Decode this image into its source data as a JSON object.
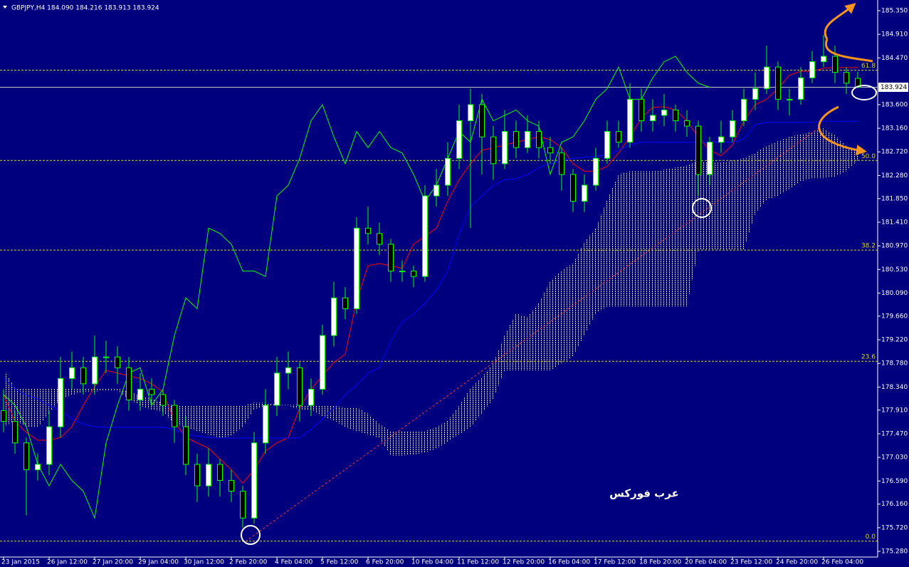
{
  "chart_data": {
    "type": "candlestick",
    "title": "GBPJPY,H4  184.090 184.216 183.913 183.924",
    "watermark": "عرب فوركس",
    "background": "#00007f",
    "up_color": "#ffffff",
    "down_color": "#000000",
    "wick_color": "#00ff00",
    "categories": [
      "23 Jan 2015",
      null,
      null,
      null,
      "26 Jan 12:00",
      null,
      null,
      null,
      "27 Jan 20:00",
      null,
      null,
      null,
      "29 Jan 04:00",
      null,
      null,
      null,
      "30 Jan 12:00",
      null,
      null,
      null,
      "2 Feb 20:00",
      null,
      null,
      null,
      "4 Feb 04:00",
      null,
      null,
      null,
      "5 Feb 12:00",
      null,
      null,
      null,
      "6 Feb 20:00",
      null,
      null,
      null,
      "10 Feb 04:00",
      null,
      null,
      null,
      "11 Feb 12:00",
      null,
      null,
      null,
      "12 Feb 20:00",
      null,
      null,
      null,
      "16 Feb 04:00",
      null,
      null,
      null,
      "17 Feb 12:00",
      null,
      null,
      null,
      "18 Feb 20:00",
      null,
      null,
      null,
      "20 Feb 04:00",
      null,
      null,
      null,
      "23 Feb 12:00",
      null,
      null,
      null,
      "24 Feb 20:00",
      null,
      null,
      null,
      "26 Feb 04:00",
      null,
      null,
      null
    ],
    "ohlc": [
      [
        177.9,
        178.3,
        177.5,
        177.7
      ],
      [
        177.7,
        177.9,
        177.1,
        177.3
      ],
      [
        177.3,
        177.4,
        175.95,
        176.8
      ],
      [
        176.8,
        177.1,
        176.6,
        176.9
      ],
      [
        176.9,
        177.9,
        176.7,
        177.6
      ],
      [
        177.6,
        178.9,
        177.4,
        178.5
      ],
      [
        178.5,
        179.0,
        178.3,
        178.7
      ],
      [
        178.7,
        178.9,
        178.2,
        178.4
      ],
      [
        178.4,
        179.3,
        178.2,
        178.9
      ],
      [
        178.9,
        179.2,
        178.6,
        178.9
      ],
      [
        178.9,
        179.1,
        178.4,
        178.7
      ],
      [
        178.7,
        178.9,
        177.9,
        178.1
      ],
      [
        178.1,
        178.6,
        177.9,
        178.3
      ],
      [
        178.3,
        178.5,
        178.0,
        178.2
      ],
      [
        178.2,
        178.3,
        177.8,
        178.0
      ],
      [
        178.0,
        178.1,
        177.3,
        177.6
      ],
      [
        177.6,
        177.8,
        176.7,
        176.9
      ],
      [
        176.9,
        177.1,
        176.2,
        176.5
      ],
      [
        176.5,
        177.2,
        176.3,
        176.9
      ],
      [
        176.9,
        177.0,
        176.3,
        176.6
      ],
      [
        176.6,
        176.8,
        176.2,
        176.4
      ],
      [
        176.4,
        176.5,
        175.72,
        175.9
      ],
      [
        175.9,
        177.5,
        175.8,
        177.3
      ],
      [
        177.3,
        178.3,
        177.1,
        178.0
      ],
      [
        178.0,
        178.9,
        177.8,
        178.6
      ],
      [
        178.6,
        179.0,
        178.3,
        178.7
      ],
      [
        178.7,
        178.8,
        177.7,
        178.0
      ],
      [
        178.0,
        178.5,
        177.8,
        178.3
      ],
      [
        178.3,
        179.5,
        178.2,
        179.3
      ],
      [
        179.3,
        180.3,
        179.1,
        180.0
      ],
      [
        180.0,
        180.2,
        179.6,
        179.8
      ],
      [
        179.8,
        181.5,
        179.7,
        181.3
      ],
      [
        181.3,
        181.7,
        181.0,
        181.2
      ],
      [
        181.2,
        181.4,
        180.8,
        181.0
      ],
      [
        181.0,
        181.1,
        180.3,
        180.5
      ],
      [
        180.5,
        180.7,
        180.3,
        180.5
      ],
      [
        180.5,
        180.6,
        180.2,
        180.4
      ],
      [
        180.4,
        182.1,
        180.3,
        181.9
      ],
      [
        181.9,
        182.4,
        181.7,
        182.1
      ],
      [
        182.1,
        182.9,
        181.9,
        182.6
      ],
      [
        182.6,
        183.6,
        182.4,
        183.3
      ],
      [
        183.3,
        183.9,
        181.3,
        183.6
      ],
      [
        183.6,
        183.8,
        182.3,
        183.0
      ],
      [
        183.0,
        183.2,
        182.2,
        182.5
      ],
      [
        182.5,
        183.5,
        182.4,
        183.1
      ],
      [
        183.1,
        183.3,
        182.6,
        182.8
      ],
      [
        182.8,
        183.4,
        182.7,
        183.1
      ],
      [
        183.1,
        183.3,
        182.6,
        182.8
      ],
      [
        182.8,
        183.0,
        182.5,
        182.7
      ],
      [
        182.7,
        182.8,
        182.0,
        182.3
      ],
      [
        182.3,
        182.4,
        181.6,
        181.8
      ],
      [
        181.8,
        182.3,
        181.6,
        182.1
      ],
      [
        182.1,
        182.8,
        182.0,
        182.6
      ],
      [
        182.6,
        183.3,
        182.5,
        183.1
      ],
      [
        183.1,
        183.3,
        182.8,
        182.9
      ],
      [
        182.9,
        184.0,
        182.8,
        183.7
      ],
      [
        183.7,
        183.9,
        183.1,
        183.3
      ],
      [
        183.3,
        183.7,
        183.1,
        183.4
      ],
      [
        183.4,
        183.8,
        183.2,
        183.5
      ],
      [
        183.5,
        183.6,
        183.1,
        183.3
      ],
      [
        183.3,
        183.5,
        183.0,
        183.2
      ],
      [
        183.2,
        183.3,
        181.9,
        182.3
      ],
      [
        182.3,
        183.0,
        182.1,
        182.9
      ],
      [
        182.9,
        183.3,
        182.7,
        183.0
      ],
      [
        183.0,
        183.5,
        182.9,
        183.3
      ],
      [
        183.3,
        183.9,
        183.2,
        183.7
      ],
      [
        183.7,
        184.2,
        183.5,
        183.9
      ],
      [
        183.9,
        184.7,
        183.8,
        184.3
      ],
      [
        184.3,
        184.4,
        183.5,
        183.7
      ],
      [
        183.7,
        183.9,
        183.4,
        183.7
      ],
      [
        183.7,
        184.3,
        183.6,
        184.1
      ],
      [
        184.1,
        184.6,
        184.0,
        184.4
      ],
      [
        184.4,
        184.9,
        184.3,
        184.5
      ],
      [
        184.5,
        184.7,
        184.0,
        184.2
      ],
      [
        184.2,
        184.3,
        183.8,
        184.0
      ],
      [
        184.09,
        184.216,
        183.913,
        183.924
      ]
    ],
    "lines": [
      {
        "color": "#ff0000",
        "values": [
          178.2,
          177.7,
          177.5,
          177.35,
          177.35,
          177.4,
          177.6,
          178.0,
          178.35,
          178.65,
          178.6,
          178.55,
          178.5,
          178.4,
          178.25,
          177.7,
          177.4,
          177.3,
          177.2,
          177.0,
          176.8,
          176.55,
          176.8,
          177.15,
          177.3,
          177.4,
          177.95,
          178.3,
          178.55,
          178.8,
          178.95,
          179.95,
          180.6,
          180.64,
          180.6,
          180.55,
          181.0,
          181.15,
          181.3,
          181.8,
          182.2,
          182.5,
          182.75,
          182.8,
          182.85,
          182.9,
          182.95,
          183.0,
          182.95,
          182.8,
          182.5,
          182.36,
          182.36,
          182.45,
          182.7,
          183.0,
          183.35,
          183.55,
          183.56,
          183.5,
          183.3,
          183.0,
          182.75,
          182.65,
          182.85,
          183.3,
          183.6,
          183.7,
          183.9,
          184.15,
          184.22,
          184.22,
          184.28,
          184.29,
          184.29,
          184.29
        ]
      },
      {
        "color": "#0000ff",
        "values": [
          178.52,
          178.3,
          178.19,
          178.12,
          178.0,
          177.9,
          177.75,
          177.65,
          177.6,
          177.59,
          177.59,
          177.59,
          177.59,
          177.59,
          177.59,
          177.55,
          177.46,
          177.43,
          177.4,
          177.39,
          177.39,
          177.39,
          177.39,
          177.39,
          177.39,
          177.39,
          177.39,
          177.55,
          177.75,
          177.95,
          178.2,
          178.38,
          178.6,
          178.7,
          179.2,
          179.55,
          179.7,
          179.9,
          180.15,
          180.5,
          181.2,
          181.7,
          181.9,
          182.1,
          182.2,
          182.22,
          182.3,
          182.43,
          182.5,
          182.56,
          182.6,
          182.62,
          182.64,
          182.66,
          182.75,
          182.85,
          182.9,
          182.9,
          182.9,
          182.9,
          182.9,
          182.9,
          182.9,
          182.9,
          182.9,
          182.96,
          183.23,
          183.27,
          183.27,
          183.27,
          183.27,
          183.27,
          183.29,
          183.29,
          183.29,
          183.29
        ]
      },
      {
        "color": "#00ff00",
        "values": [
          178.2,
          178.0,
          177.6,
          176.9,
          176.5,
          176.9,
          176.6,
          176.4,
          175.9,
          177.3,
          178.0,
          178.6,
          178.7,
          178.0,
          178.3,
          179.3,
          180.0,
          179.8,
          181.3,
          181.2,
          181.0,
          180.5,
          180.5,
          180.4,
          181.9,
          182.1,
          182.6,
          183.3,
          183.6,
          183.0,
          182.5,
          183.1,
          182.8,
          183.1,
          182.8,
          182.7,
          182.3,
          181.8,
          182.1,
          182.6,
          183.1,
          182.9,
          183.7,
          183.3,
          183.4,
          183.5,
          183.3,
          183.2,
          182.3,
          182.9,
          183.0,
          183.3,
          183.7,
          183.9,
          184.3,
          183.7,
          183.7,
          184.1,
          184.4,
          184.5,
          184.2,
          184.0,
          183.924,
          null,
          null,
          null,
          null,
          null,
          null,
          null,
          null,
          null,
          null,
          null,
          null,
          null
        ]
      }
    ],
    "cloud": {
      "color": "#ffffff",
      "span_a": [
        178.68,
        178.32,
        178.32,
        178.32,
        178.32,
        178.32,
        178.32,
        178.32,
        178.32,
        178.32,
        178.32,
        178.25,
        178.19,
        178.12,
        178.05,
        177.99,
        177.99,
        177.99,
        177.99,
        177.99,
        177.99,
        177.99,
        178.05,
        178.05,
        178.01,
        178.01,
        178.01,
        177.99,
        177.99,
        177.99,
        177.96,
        177.96,
        177.85,
        177.65,
        177.52,
        177.52,
        177.52,
        177.52,
        177.59,
        177.72,
        177.99,
        178.32,
        178.52,
        178.78,
        179.31,
        179.71,
        179.64,
        179.91,
        180.31,
        180.51,
        180.64,
        181.04,
        181.3,
        181.83,
        182.3,
        182.36,
        182.36,
        182.36,
        182.39,
        182.43,
        182.47,
        182.56,
        182.52,
        182.52,
        182.56,
        182.6,
        182.7,
        182.83,
        182.92,
        183.0,
        183.05,
        183.09,
        183.16,
        183.03,
        182.83,
        182.76
      ],
      "span_b": [
        177.59,
        177.72,
        177.59,
        177.59,
        177.85,
        178.12,
        178.19,
        178.25,
        178.25,
        178.28,
        178.28,
        178.12,
        177.99,
        177.92,
        177.88,
        177.65,
        177.59,
        177.52,
        177.46,
        177.39,
        177.43,
        177.59,
        177.92,
        177.99,
        177.99,
        177.99,
        177.92,
        177.92,
        177.79,
        177.72,
        177.59,
        177.52,
        177.46,
        177.39,
        177.06,
        177.06,
        177.08,
        177.12,
        177.19,
        177.32,
        177.46,
        177.59,
        177.85,
        178.12,
        178.65,
        178.65,
        178.65,
        178.65,
        178.65,
        178.78,
        178.91,
        179.31,
        179.71,
        179.84,
        179.84,
        179.84,
        179.84,
        179.84,
        179.84,
        179.84,
        179.84,
        180.9,
        180.9,
        180.9,
        180.9,
        180.9,
        181.57,
        181.83,
        181.9,
        182.03,
        182.17,
        182.23,
        182.23,
        182.26,
        182.36,
        182.56
      ]
    },
    "fib_color": "#d8d800",
    "fib_levels": [
      {
        "value": 175.47,
        "label": "0.0"
      },
      {
        "value": 178.82,
        "label": "23.6"
      },
      {
        "value": 180.89,
        "label": "38.2"
      },
      {
        "value": 182.56,
        "label": "50.0"
      },
      {
        "value": 184.24,
        "label": "61.8"
      }
    ],
    "current_price": {
      "value": 183.924,
      "label": "183.924"
    },
    "ylim": [
      175.174,
      185.549
    ],
    "yticks": [
      {
        "value": 185.35,
        "label": "185.350"
      },
      {
        "value": 184.91,
        "label": "184.910"
      },
      {
        "value": 184.47,
        "label": "184.470"
      },
      {
        "value": 183.6,
        "label": "183.600"
      },
      {
        "value": 183.16,
        "label": "183.160"
      },
      {
        "value": 182.72,
        "label": "182.720"
      },
      {
        "value": 182.28,
        "label": "182.280"
      },
      {
        "value": 181.85,
        "label": "181.850"
      },
      {
        "value": 181.41,
        "label": "181.410"
      },
      {
        "value": 180.97,
        "label": "180.970"
      },
      {
        "value": 180.53,
        "label": "180.530"
      },
      {
        "value": 180.09,
        "label": "180.090"
      },
      {
        "value": 179.66,
        "label": "179.660"
      },
      {
        "value": 179.22,
        "label": "179.220"
      },
      {
        "value": 178.78,
        "label": "178.780"
      },
      {
        "value": 178.34,
        "label": "178.340"
      },
      {
        "value": 177.91,
        "label": "177.910"
      },
      {
        "value": 177.47,
        "label": "177.470"
      },
      {
        "value": 177.03,
        "label": "177.030"
      },
      {
        "value": 176.59,
        "label": "176.590"
      },
      {
        "value": 176.16,
        "label": "176.160"
      },
      {
        "value": 175.72,
        "label": "175.720"
      },
      {
        "value": 175.28,
        "label": "175.280"
      }
    ]
  }
}
